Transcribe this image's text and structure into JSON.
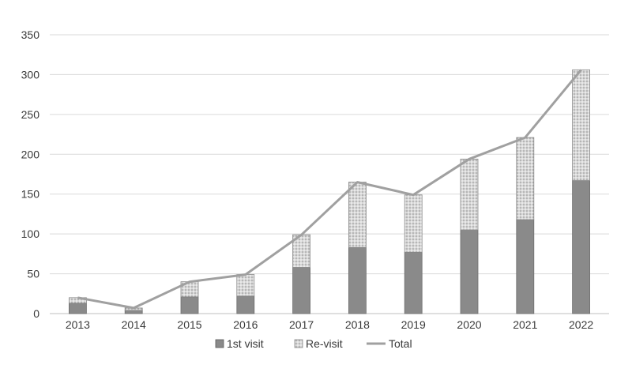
{
  "chart_data": {
    "type": "bar",
    "stacked": true,
    "categories": [
      "2013",
      "2014",
      "2015",
      "2016",
      "2017",
      "2018",
      "2019",
      "2020",
      "2021",
      "2022"
    ],
    "series": [
      {
        "name": "1st visit",
        "kind": "bar",
        "values": [
          13,
          4,
          21,
          22,
          58,
          83,
          77,
          105,
          118,
          167
        ]
      },
      {
        "name": "Re-visit",
        "kind": "bar",
        "values": [
          7,
          3,
          19,
          27,
          41,
          82,
          72,
          89,
          103,
          139
        ]
      },
      {
        "name": "Total",
        "kind": "line",
        "values": [
          20,
          7,
          40,
          49,
          99,
          165,
          149,
          194,
          221,
          306
        ]
      }
    ],
    "ylim": [
      0,
      350
    ],
    "yticks": [
      0,
      50,
      100,
      150,
      200,
      250,
      300,
      350
    ],
    "title": "",
    "xlabel": "",
    "ylabel": "",
    "grid": "horizontal",
    "legend_position": "bottom",
    "colors": {
      "first_visit": "#8a8a8a",
      "re_visit": "#c8c8c8",
      "total_line": "#a0a0a0",
      "grid": "#d9d9d9",
      "axis_text": "#3a3a3a"
    }
  }
}
